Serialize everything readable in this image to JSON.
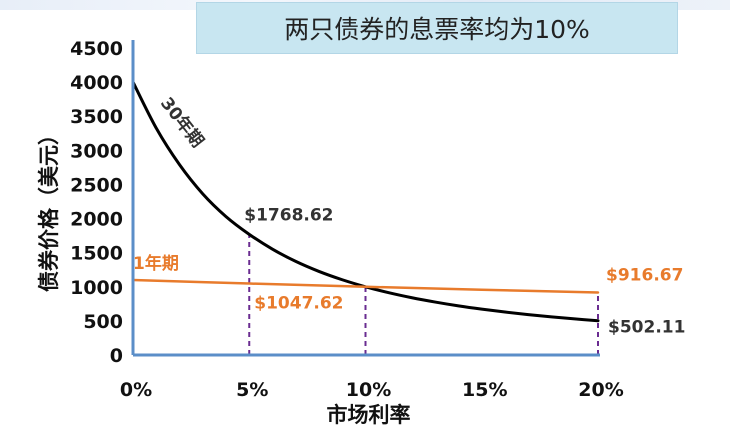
{
  "chart_data": {
    "type": "line",
    "title": "两只债券的息票率均为10%",
    "xlabel": "市场利率",
    "ylabel": "债券价格（美元）",
    "xlim": [
      0,
      20
    ],
    "ylim": [
      0,
      4500
    ],
    "x_ticks": [
      {
        "value": 0,
        "label": "0%"
      },
      {
        "value": 5,
        "label": "5%"
      },
      {
        "value": 10,
        "label": "10%"
      },
      {
        "value": 15,
        "label": "15%"
      },
      {
        "value": 20,
        "label": "20%"
      }
    ],
    "y_ticks": [
      0,
      500,
      1000,
      1500,
      2000,
      2500,
      3000,
      3500,
      4000,
      4500
    ],
    "grid": false,
    "series": [
      {
        "name": "30年期",
        "color": "#000000",
        "x": [
          0,
          1,
          2,
          3,
          4,
          5,
          6,
          7,
          8,
          9,
          10,
          11,
          12,
          13,
          14,
          15,
          16,
          17,
          18,
          19,
          20
        ],
        "y": [
          4000,
          3325,
          2790,
          2362,
          2029,
          1768.62,
          1551,
          1372,
          1225,
          1103,
          1000,
          913,
          839,
          776,
          720,
          672,
          630,
          592,
          559,
          529,
          502.11
        ]
      },
      {
        "name": "1年期",
        "color": "#e87b2c",
        "x": [
          0,
          5,
          10,
          15,
          20
        ],
        "y": [
          1100,
          1047.62,
          1000,
          956.52,
          916.67
        ]
      }
    ],
    "annotations": [
      {
        "text": "$1768.62",
        "x": 5,
        "y": 1768.62,
        "color": "#333333"
      },
      {
        "text": "$1047.62",
        "x": 5,
        "y": 1047.62,
        "color": "#e87b2c"
      },
      {
        "text": "$916.67",
        "x": 20,
        "y": 916.67,
        "color": "#e87b2c"
      },
      {
        "text": "$502.11",
        "x": 20,
        "y": 502.11,
        "color": "#333333"
      }
    ],
    "guide_lines_x": [
      5,
      10,
      20
    ],
    "guide_color": "#6a2c91",
    "axis_color": "#5b8ec8"
  }
}
